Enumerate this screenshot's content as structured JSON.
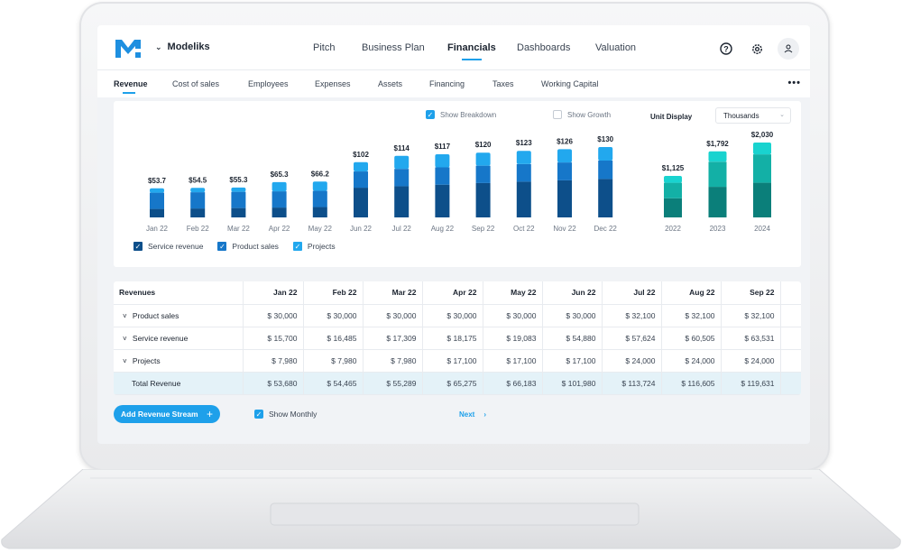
{
  "app": {
    "name": "Modeliks"
  },
  "topnav": {
    "items": [
      "Pitch",
      "Business Plan",
      "Financials",
      "Dashboards",
      "Valuation"
    ],
    "active": "Financials"
  },
  "icons": {
    "help": "help-circle-icon",
    "settings": "gear-icon",
    "user": "user-icon",
    "more": "more-horizontal-icon",
    "brand": "chevron-down-icon"
  },
  "subnav": {
    "items": [
      "Revenue",
      "Cost of sales",
      "Employees",
      "Expenses",
      "Assets",
      "Financing",
      "Taxes",
      "Working Capital"
    ],
    "active": "Revenue"
  },
  "controls": {
    "show_breakdown": {
      "label": "Show Breakdown",
      "checked": true
    },
    "show_growth": {
      "label": "Show Growth",
      "checked": false
    },
    "unit_label": "Unit Display",
    "unit_value": "Thousands"
  },
  "colors": {
    "accent": "#1ea0ea",
    "service": "#0d4f8a",
    "product": "#1677c9",
    "projects": "#22a8ee",
    "y1": "#0b7f7a",
    "y2": "#13b0a6",
    "y3": "#19d3cf"
  },
  "chart_data": [
    {
      "type": "bar",
      "stacked": true,
      "categories": [
        "Jan 22",
        "Feb 22",
        "Mar 22",
        "Apr 22",
        "May 22",
        "Jun 22",
        "Jul 22",
        "Aug 22",
        "Sep 22",
        "Oct 22",
        "Nov 22",
        "Dec 22"
      ],
      "totals_labels": [
        "$53.7",
        "$54.5",
        "$55.3",
        "$65.3",
        "$66.2",
        "$102",
        "$114",
        "$117",
        "$120",
        "$123",
        "$126",
        "$130"
      ],
      "series": [
        {
          "name": "Service revenue",
          "values": [
            15.7,
            16.5,
            17.3,
            18.2,
            19.1,
            54.9,
            57.6,
            60.5,
            63.5,
            66.0,
            68.5,
            71.0
          ]
        },
        {
          "name": "Product sales",
          "values": [
            30.0,
            30.0,
            30.0,
            30.0,
            30.0,
            30.0,
            32.1,
            32.1,
            32.1,
            32.5,
            33.0,
            34.0
          ]
        },
        {
          "name": "Projects",
          "values": [
            8.0,
            8.0,
            8.0,
            17.1,
            17.1,
            17.1,
            24.0,
            24.0,
            24.0,
            24.5,
            24.5,
            25.0
          ]
        }
      ],
      "ylim": [
        0,
        140
      ]
    },
    {
      "type": "bar",
      "stacked": true,
      "categories": [
        "2022",
        "2023",
        "2024"
      ],
      "totals_labels": [
        "$1,125",
        "$1,792",
        "$2,030"
      ],
      "series": [
        {
          "values": [
            520,
            830,
            940
          ]
        },
        {
          "values": [
            420,
            680,
            770
          ]
        },
        {
          "values": [
            185,
            282,
            320
          ]
        }
      ],
      "ylim": [
        0,
        2300
      ]
    }
  ],
  "legend": [
    {
      "label": "Service revenue",
      "checked": true
    },
    {
      "label": "Product sales",
      "checked": true
    },
    {
      "label": "Projects",
      "checked": true
    }
  ],
  "table": {
    "headers": [
      "Revenues",
      "Jan 22",
      "Feb 22",
      "Mar 22",
      "Apr 22",
      "May 22",
      "Jun 22",
      "Jul 22",
      "Aug 22",
      "Sep 22"
    ],
    "rows": [
      {
        "label": "Product sales",
        "values": [
          "$ 30,000",
          "$ 30,000",
          "$ 30,000",
          "$ 30,000",
          "$ 30,000",
          "$ 30,000",
          "$ 32,100",
          "$ 32,100",
          "$ 32,100"
        ]
      },
      {
        "label": "Service revenue",
        "values": [
          "$ 15,700",
          "$ 16,485",
          "$ 17,309",
          "$ 18,175",
          "$ 19,083",
          "$ 54,880",
          "$ 57,624",
          "$ 60,505",
          "$ 63,531"
        ]
      },
      {
        "label": "Projects",
        "values": [
          "$ 7,980",
          "$ 7,980",
          "$ 7,980",
          "$ 17,100",
          "$ 17,100",
          "$ 17,100",
          "$ 24,000",
          "$ 24,000",
          "$ 24,000"
        ]
      },
      {
        "label": "Total Revenue",
        "values": [
          "$ 53,680",
          "$ 54,465",
          "$ 55,289",
          "$ 65,275",
          "$ 66,183",
          "$ 101,980",
          "$ 113,724",
          "$ 116,605",
          "$ 119,631"
        ]
      }
    ]
  },
  "footer": {
    "add_button": "Add Revenue Stream",
    "show_monthly": {
      "label": "Show Monthly",
      "checked": true
    },
    "next": "Next"
  }
}
